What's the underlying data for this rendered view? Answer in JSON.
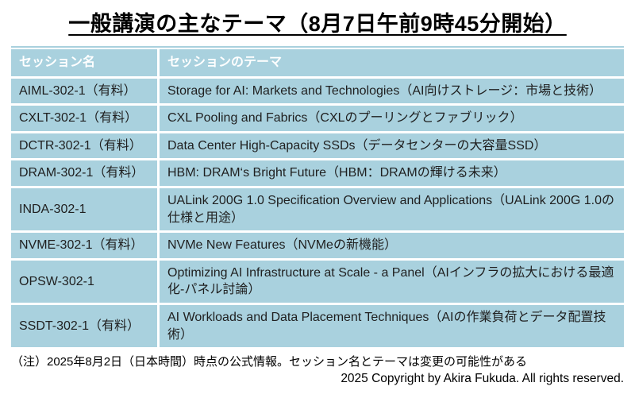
{
  "title": "一般講演の主なテーマ（8月7日午前9時45分開始）",
  "table": {
    "headers": [
      "セッション名",
      "セッションのテーマ"
    ],
    "rows": [
      {
        "session": "AIML-302-1（有料）",
        "theme": "Storage for AI: Markets and Technologies（AI向けストレージ：市場と技術）"
      },
      {
        "session": "CXLT-302-1（有料）",
        "theme": "CXL Pooling and Fabrics（CXLのプーリングとファブリック）"
      },
      {
        "session": "DCTR-302-1（有料）",
        "theme": "Data Center High-Capacity SSDs（データセンターの大容量SSD）"
      },
      {
        "session": "DRAM-302-1（有料）",
        "theme": "HBM: DRAM‘s Bright Future（HBM：DRAMの輝ける未来）"
      },
      {
        "session": "INDA-302-1",
        "theme": "UALink 200G 1.0 Specification Overview and Applications（UALink 200G 1.0の仕様と用途）"
      },
      {
        "session": "NVME-302-1（有料）",
        "theme": "NVMe New Features（NVMeの新機能）"
      },
      {
        "session": "OPSW-302-1",
        "theme": "Optimizing AI Infrastructure at Scale - a Panel（AIインフラの拡大における最適化-パネル討論）"
      },
      {
        "session": "SSDT-302-1（有料）",
        "theme": "AI Workloads and Data Placement Techniques（AIの作業負荷とデータ配置技術）"
      }
    ]
  },
  "footnote": "（注）2025年8月2日（日本時間）時点の公式情報。セッション名とテーマは変更の可能性がある",
  "copyright": "2025 Copyright by Akira Fukuda. All rights reserved.",
  "colors": {
    "table_fill": "#A9D1DE",
    "header_text": "#FFFFFF",
    "body_text": "#1F1F1F"
  }
}
